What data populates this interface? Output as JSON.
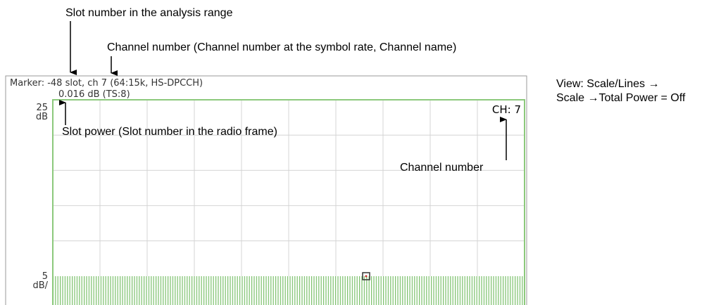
{
  "annotations": {
    "slot_number": "Slot number in the analysis range",
    "channel_info": "Channel number (Channel number at the symbol rate, Channel name)",
    "slot_power": "Slot power (Slot number in the radio frame)",
    "channel_number": "Channel number"
  },
  "screen": {
    "marker": "Marker: -48 slot, ch 7 (64:15k, HS-DPCCH)",
    "readout": "0.016 dB (TS:8)",
    "top_scale": "25",
    "top_unit": "dB",
    "bottom_scale": "5",
    "bottom_unit": "dB/",
    "channel": "CH: 7"
  },
  "side_note": [
    "View: Scale/Lines →",
    "Scale →Total Power = Off"
  ]
}
